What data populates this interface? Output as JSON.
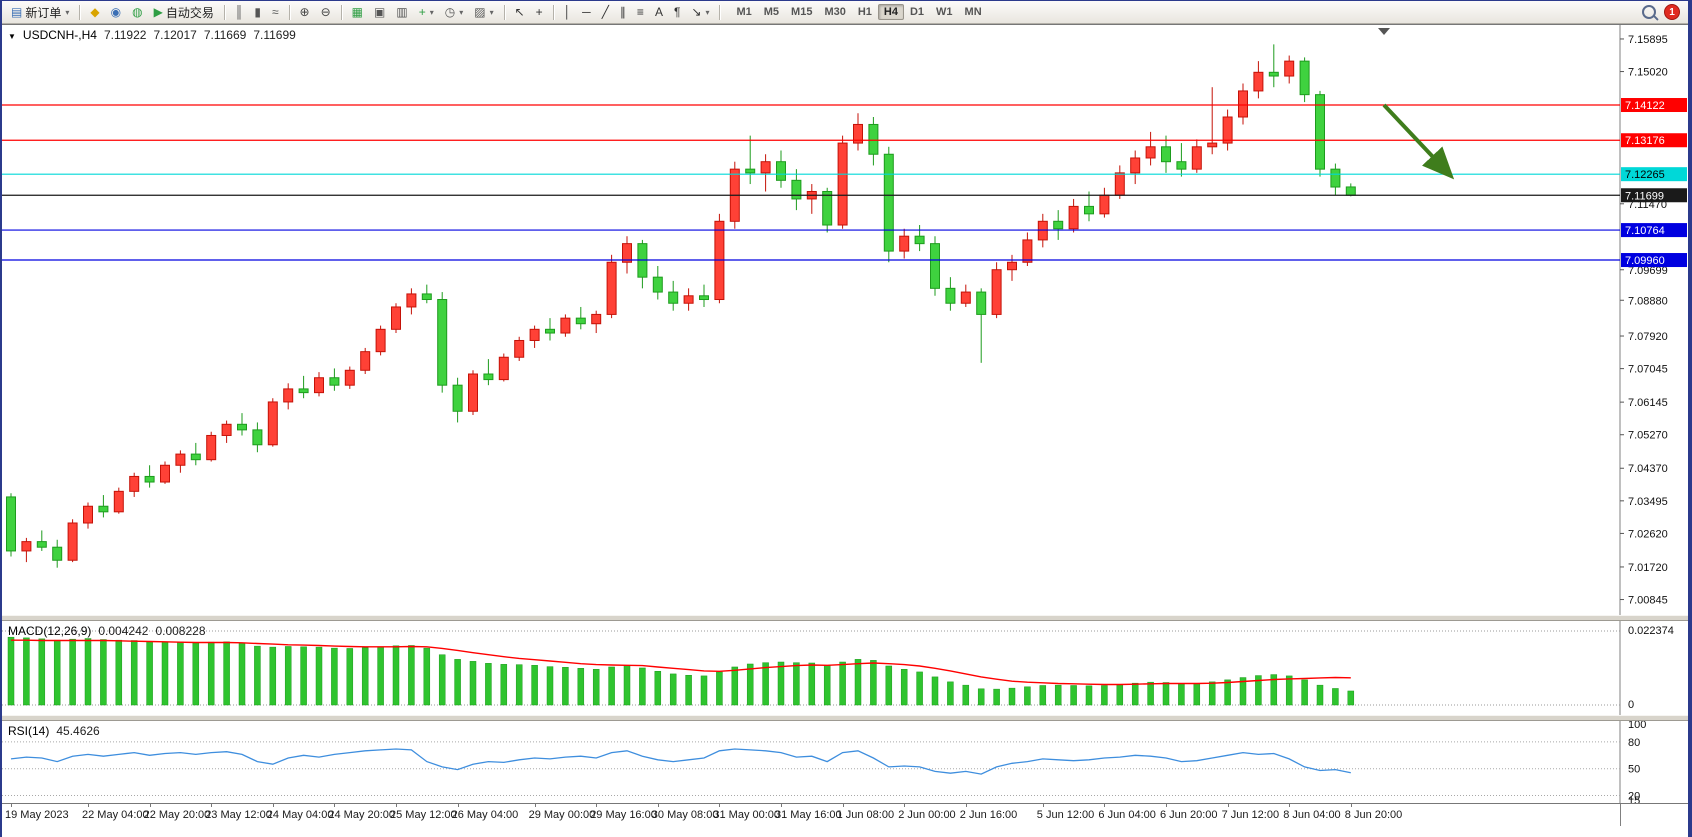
{
  "toolbar": {
    "items": [
      {
        "name": "new-order",
        "glyph": "▤",
        "color": "#3b6fb5",
        "label": "新订单",
        "dropdown": true
      },
      {
        "type": "sep"
      },
      {
        "name": "toolbox",
        "glyph": "◆",
        "color": "#d9a400"
      },
      {
        "name": "community",
        "glyph": "◉",
        "color": "#3b6fb5"
      },
      {
        "name": "market",
        "glyph": "◍",
        "color": "#2f9e44"
      },
      {
        "name": "autotrade",
        "glyph": "▶",
        "color": "#2f9e44",
        "label": "自动交易"
      },
      {
        "type": "sep"
      },
      {
        "name": "bar-chart",
        "glyph": "║",
        "color": "#555555"
      },
      {
        "name": "candlestick-chart",
        "glyph": "▮",
        "color": "#555555"
      },
      {
        "name": "line-chart",
        "glyph": "≈",
        "color": "#555555"
      },
      {
        "type": "sep"
      },
      {
        "name": "zoom-in",
        "glyph": "⊕",
        "color": "#444444"
      },
      {
        "name": "zoom-out",
        "glyph": "⊖",
        "color": "#444444"
      },
      {
        "type": "sep"
      },
      {
        "name": "tile-windows",
        "glyph": "▦",
        "color": "#2f9e44"
      },
      {
        "name": "cascade-windows",
        "glyph": "▣",
        "color": "#555555"
      },
      {
        "name": "arrange-windows",
        "glyph": "▥",
        "color": "#555555"
      },
      {
        "name": "indicators",
        "glyph": "+",
        "color": "#2f9e44",
        "dropdown": true
      },
      {
        "name": "periods",
        "glyph": "◷",
        "color": "#555555",
        "dropdown": true
      },
      {
        "name": "templates",
        "glyph": "▨",
        "color": "#555555",
        "dropdown": true
      },
      {
        "type": "sep"
      },
      {
        "name": "cursor",
        "glyph": "↖",
        "color": "#333333"
      },
      {
        "name": "crosshair",
        "glyph": "+",
        "color": "#333333"
      },
      {
        "type": "sep"
      },
      {
        "name": "vertical-line",
        "glyph": "│",
        "color": "#333333"
      },
      {
        "name": "horizontal-line",
        "glyph": "─",
        "color": "#333333"
      },
      {
        "name": "trendline",
        "glyph": "╱",
        "color": "#333333"
      },
      {
        "name": "channel",
        "glyph": "∥",
        "color": "#333333"
      },
      {
        "name": "fibonacci",
        "glyph": "≡",
        "color": "#333333"
      },
      {
        "name": "text",
        "glyph": "A",
        "color": "#333333"
      },
      {
        "name": "text-label",
        "glyph": "¶",
        "color": "#333333"
      },
      {
        "name": "arrows",
        "glyph": "↘",
        "color": "#333333",
        "dropdown": true
      },
      {
        "type": "sep"
      }
    ],
    "timeframes": [
      {
        "label": "M1"
      },
      {
        "label": "M5"
      },
      {
        "label": "M15"
      },
      {
        "label": "M30"
      },
      {
        "label": "H1"
      },
      {
        "label": "H4",
        "active": true
      },
      {
        "label": "D1"
      },
      {
        "label": "W1"
      },
      {
        "label": "MN"
      }
    ],
    "notification_count": "1"
  },
  "chart_data": {
    "type": "candlestick",
    "symbol_period": "USDCNH-,H4",
    "ohlc": {
      "open": "7.11922",
      "high": "7.12017",
      "low": "7.11669",
      "close": "7.11699"
    },
    "price_axis": {
      "range": [
        7.0043,
        7.1627
      ],
      "ticks": [
        "7.15895",
        "7.15020",
        "7.11470",
        "7.09699",
        "7.08880",
        "7.07920",
        "7.07045",
        "7.06145",
        "7.05270",
        "7.04370",
        "7.03495",
        "7.02620",
        "7.01720",
        "7.00845"
      ]
    },
    "horizontal_lines": [
      {
        "label": "7.14122",
        "value": 7.14122,
        "color": "#ff0000",
        "text_color": "#ffffff"
      },
      {
        "label": "7.13176",
        "value": 7.13176,
        "color": "#ff0000",
        "text_color": "#ffffff"
      },
      {
        "label": "7.12265",
        "value": 7.12265,
        "color": "#00d8d8",
        "text_color": "#000000"
      },
      {
        "label": "7.11699",
        "value": 7.11699,
        "color": "#1a1a1a",
        "text_color": "#ffffff"
      },
      {
        "label": "7.10764",
        "value": 7.10764,
        "color": "#0000e0",
        "text_color": "#ffffff"
      },
      {
        "label": "7.09960",
        "value": 7.0996,
        "color": "#0000e0",
        "text_color": "#ffffff"
      }
    ],
    "colors": {
      "up_fill": "#ff4136",
      "up_stroke": "#c41208",
      "down_fill": "#3fd23f",
      "down_stroke": "#1d9b1d",
      "rsi_line": "#3e8ede",
      "macd_hist": "#2fc42f",
      "macd_signal": "#ff0000",
      "arrow": "#3f7d1c"
    },
    "candles": [
      [
        7.036,
        7.037,
        7.02,
        7.0215
      ],
      [
        7.0215,
        7.025,
        7.0185,
        7.024
      ],
      [
        7.024,
        7.027,
        7.0215,
        7.0225
      ],
      [
        7.0225,
        7.0245,
        7.017,
        7.019
      ],
      [
        7.019,
        7.03,
        7.0185,
        7.029
      ],
      [
        7.029,
        7.0345,
        7.0275,
        7.0335
      ],
      [
        7.0335,
        7.0365,
        7.0305,
        7.032
      ],
      [
        7.032,
        7.0385,
        7.0315,
        7.0375
      ],
      [
        7.0375,
        7.0425,
        7.036,
        7.0415
      ],
      [
        7.0415,
        7.0445,
        7.0385,
        7.04
      ],
      [
        7.04,
        7.0455,
        7.0395,
        7.0445
      ],
      [
        7.0445,
        7.0485,
        7.0425,
        7.0475
      ],
      [
        7.0475,
        7.0505,
        7.0445,
        7.046
      ],
      [
        7.046,
        7.0535,
        7.0455,
        7.0525
      ],
      [
        7.0525,
        7.0565,
        7.0505,
        7.0555
      ],
      [
        7.0555,
        7.0585,
        7.0525,
        7.054
      ],
      [
        7.054,
        7.056,
        7.048,
        7.05
      ],
      [
        7.05,
        7.0625,
        7.0495,
        7.0615
      ],
      [
        7.0615,
        7.0665,
        7.0595,
        7.065
      ],
      [
        7.065,
        7.0685,
        7.0625,
        7.064
      ],
      [
        7.064,
        7.0695,
        7.063,
        7.068
      ],
      [
        7.068,
        7.0705,
        7.0645,
        7.066
      ],
      [
        7.066,
        7.071,
        7.065,
        7.07
      ],
      [
        7.07,
        7.076,
        7.069,
        7.075
      ],
      [
        7.075,
        7.082,
        7.074,
        7.081
      ],
      [
        7.081,
        7.088,
        7.08,
        7.087
      ],
      [
        7.087,
        7.092,
        7.085,
        7.0905
      ],
      [
        7.0905,
        7.093,
        7.088,
        7.089
      ],
      [
        7.089,
        7.091,
        7.064,
        7.066
      ],
      [
        7.066,
        7.068,
        7.056,
        7.059
      ],
      [
        7.059,
        7.07,
        7.058,
        7.069
      ],
      [
        7.069,
        7.073,
        7.066,
        7.0675
      ],
      [
        7.0675,
        7.0745,
        7.067,
        7.0735
      ],
      [
        7.0735,
        7.079,
        7.0725,
        7.078
      ],
      [
        7.078,
        7.082,
        7.076,
        7.081
      ],
      [
        7.081,
        7.084,
        7.078,
        7.08
      ],
      [
        7.08,
        7.085,
        7.079,
        7.084
      ],
      [
        7.084,
        7.087,
        7.081,
        7.0825
      ],
      [
        7.0825,
        7.086,
        7.08,
        7.085
      ],
      [
        7.085,
        7.101,
        7.084,
        7.099
      ],
      [
        7.099,
        7.106,
        7.096,
        7.104
      ],
      [
        7.104,
        7.105,
        7.092,
        7.095
      ],
      [
        7.095,
        7.098,
        7.089,
        7.091
      ],
      [
        7.091,
        7.094,
        7.086,
        7.088
      ],
      [
        7.088,
        7.092,
        7.086,
        7.09
      ],
      [
        7.09,
        7.093,
        7.087,
        7.089
      ],
      [
        7.089,
        7.112,
        7.088,
        7.11
      ],
      [
        7.11,
        7.126,
        7.108,
        7.124
      ],
      [
        7.124,
        7.133,
        7.12,
        7.123
      ],
      [
        7.123,
        7.128,
        7.118,
        7.126
      ],
      [
        7.126,
        7.129,
        7.119,
        7.121
      ],
      [
        7.121,
        7.124,
        7.113,
        7.116
      ],
      [
        7.116,
        7.12,
        7.112,
        7.118
      ],
      [
        7.118,
        7.119,
        7.107,
        7.109
      ],
      [
        7.109,
        7.133,
        7.108,
        7.131
      ],
      [
        7.131,
        7.139,
        7.129,
        7.136
      ],
      [
        7.136,
        7.138,
        7.125,
        7.128
      ],
      [
        7.128,
        7.13,
        7.099,
        7.102
      ],
      [
        7.102,
        7.108,
        7.1,
        7.106
      ],
      [
        7.106,
        7.109,
        7.102,
        7.104
      ],
      [
        7.104,
        7.106,
        7.09,
        7.092
      ],
      [
        7.092,
        7.095,
        7.086,
        7.088
      ],
      [
        7.088,
        7.093,
        7.087,
        7.091
      ],
      [
        7.091,
        7.092,
        7.072,
        7.085
      ],
      [
        7.085,
        7.099,
        7.084,
        7.097
      ],
      [
        7.097,
        7.101,
        7.094,
        7.099
      ],
      [
        7.099,
        7.107,
        7.098,
        7.105
      ],
      [
        7.105,
        7.112,
        7.103,
        7.11
      ],
      [
        7.11,
        7.113,
        7.105,
        7.108
      ],
      [
        7.108,
        7.116,
        7.107,
        7.114
      ],
      [
        7.114,
        7.118,
        7.11,
        7.112
      ],
      [
        7.112,
        7.119,
        7.111,
        7.117
      ],
      [
        7.117,
        7.125,
        7.116,
        7.123
      ],
      [
        7.123,
        7.129,
        7.12,
        7.127
      ],
      [
        7.127,
        7.134,
        7.125,
        7.13
      ],
      [
        7.13,
        7.133,
        7.123,
        7.126
      ],
      [
        7.126,
        7.131,
        7.122,
        7.124
      ],
      [
        7.124,
        7.132,
        7.123,
        7.13
      ],
      [
        7.13,
        7.146,
        7.128,
        7.131
      ],
      [
        7.131,
        7.14,
        7.129,
        7.138
      ],
      [
        7.138,
        7.147,
        7.136,
        7.145
      ],
      [
        7.145,
        7.153,
        7.143,
        7.15
      ],
      [
        7.15,
        7.1575,
        7.146,
        7.149
      ],
      [
        7.149,
        7.1545,
        7.147,
        7.153
      ],
      [
        7.153,
        7.154,
        7.142,
        7.144
      ],
      [
        7.144,
        7.145,
        7.122,
        7.124
      ],
      [
        7.124,
        7.1255,
        7.117,
        7.1192
      ],
      [
        7.11922,
        7.12017,
        7.11669,
        7.11699
      ]
    ],
    "time_labels": [
      {
        "text": "19 May 2023",
        "bar": 0
      },
      {
        "text": "22 May 04:00",
        "bar": 5
      },
      {
        "text": "22 May 20:00",
        "bar": 9
      },
      {
        "text": "23 May 12:00",
        "bar": 13
      },
      {
        "text": "24 May 04:00",
        "bar": 17
      },
      {
        "text": "24 May 20:00",
        "bar": 21
      },
      {
        "text": "25 May 12:00",
        "bar": 25
      },
      {
        "text": "26 May 04:00",
        "bar": 29
      },
      {
        "text": "29 May 00:00",
        "bar": 34
      },
      {
        "text": "29 May 16:00",
        "bar": 38
      },
      {
        "text": "30 May 08:00",
        "bar": 42
      },
      {
        "text": "31 May 00:00",
        "bar": 46
      },
      {
        "text": "31 May 16:00",
        "bar": 50
      },
      {
        "text": "1 Jun 08:00",
        "bar": 54
      },
      {
        "text": "2 Jun 00:00",
        "bar": 58
      },
      {
        "text": "2 Jun 16:00",
        "bar": 62
      },
      {
        "text": "5 Jun 12:00",
        "bar": 67
      },
      {
        "text": "6 Jun 04:00",
        "bar": 71
      },
      {
        "text": "6 Jun 20:00",
        "bar": 75
      },
      {
        "text": "7 Jun 12:00",
        "bar": 79
      },
      {
        "text": "8 Jun 04:00",
        "bar": 83
      },
      {
        "text": "8 Jun 20:00",
        "bar": 87
      }
    ],
    "annotation": {
      "type": "arrow-down-right"
    },
    "macd": {
      "name": "MACD(12,26,9)",
      "main_value": "0.004242",
      "signal_value": "0.008228",
      "axis_labels": [
        "0.022374",
        "0"
      ],
      "range_max": 0.022374,
      "histogram": [
        0.0205,
        0.0203,
        0.02,
        0.0196,
        0.0199,
        0.0201,
        0.0198,
        0.0196,
        0.0195,
        0.0192,
        0.019,
        0.0191,
        0.0188,
        0.019,
        0.0191,
        0.0187,
        0.0178,
        0.0175,
        0.0177,
        0.0176,
        0.0175,
        0.0172,
        0.0171,
        0.0173,
        0.0176,
        0.0179,
        0.018,
        0.0172,
        0.0152,
        0.0138,
        0.0132,
        0.0126,
        0.0123,
        0.0122,
        0.012,
        0.0116,
        0.0114,
        0.0111,
        0.0108,
        0.0115,
        0.0119,
        0.0112,
        0.0102,
        0.0094,
        0.009,
        0.0088,
        0.01,
        0.0115,
        0.0124,
        0.0128,
        0.013,
        0.0128,
        0.0127,
        0.012,
        0.013,
        0.0138,
        0.0135,
        0.0118,
        0.0108,
        0.01,
        0.0085,
        0.007,
        0.006,
        0.0049,
        0.0048,
        0.0051,
        0.0055,
        0.0059,
        0.006,
        0.0059,
        0.0058,
        0.0059,
        0.0062,
        0.0066,
        0.0069,
        0.0068,
        0.0064,
        0.0065,
        0.007,
        0.0076,
        0.0083,
        0.0089,
        0.0092,
        0.0088,
        0.0076,
        0.006,
        0.005,
        0.004242
      ],
      "signal": [
        0.0196,
        0.0196,
        0.0195,
        0.0195,
        0.0195,
        0.0195,
        0.0195,
        0.0194,
        0.0193,
        0.0192,
        0.0191,
        0.019,
        0.0189,
        0.0189,
        0.0189,
        0.0188,
        0.0186,
        0.0184,
        0.0182,
        0.0181,
        0.018,
        0.0178,
        0.0177,
        0.0176,
        0.0176,
        0.0176,
        0.0177,
        0.0176,
        0.0171,
        0.0165,
        0.0158,
        0.0152,
        0.0146,
        0.0141,
        0.0137,
        0.0133,
        0.0129,
        0.0125,
        0.0122,
        0.0121,
        0.012,
        0.0119,
        0.0115,
        0.0111,
        0.0107,
        0.0103,
        0.0102,
        0.0105,
        0.0109,
        0.0113,
        0.0116,
        0.0119,
        0.0121,
        0.012,
        0.0122,
        0.0125,
        0.0127,
        0.0125,
        0.0122,
        0.0118,
        0.0111,
        0.0103,
        0.0094,
        0.0085,
        0.0078,
        0.0072,
        0.0069,
        0.0067,
        0.0065,
        0.0064,
        0.0063,
        0.0062,
        0.0062,
        0.0063,
        0.0064,
        0.0065,
        0.0065,
        0.0065,
        0.0066,
        0.0068,
        0.0071,
        0.0074,
        0.0077,
        0.0079,
        0.008,
        0.0082,
        0.0083,
        0.008228
      ]
    },
    "rsi": {
      "name": "RSI(14)",
      "value_text": "45.4626",
      "axis_labels": [
        "100",
        "80",
        "50",
        "20",
        "15"
      ],
      "axis_values": [
        100,
        80,
        50,
        20,
        15
      ],
      "levels": [
        80,
        50,
        20
      ],
      "range": [
        15,
        100
      ],
      "values": [
        61,
        63,
        62,
        58,
        64,
        66,
        64,
        66,
        68,
        65,
        67,
        68,
        66,
        68,
        69,
        66,
        58,
        55,
        62,
        65,
        63,
        66,
        68,
        70,
        71,
        72,
        71,
        58,
        52,
        49,
        55,
        58,
        57,
        60,
        62,
        61,
        63,
        64,
        62,
        68,
        70,
        64,
        60,
        58,
        60,
        62,
        70,
        72,
        71,
        70,
        68,
        63,
        64,
        58,
        68,
        70,
        62,
        52,
        53,
        52,
        47,
        45,
        47,
        44,
        52,
        56,
        58,
        61,
        60,
        59,
        60,
        62,
        63,
        65,
        64,
        62,
        58,
        59,
        62,
        65,
        68,
        66,
        67,
        61,
        52,
        48,
        49,
        45.46
      ]
    }
  }
}
